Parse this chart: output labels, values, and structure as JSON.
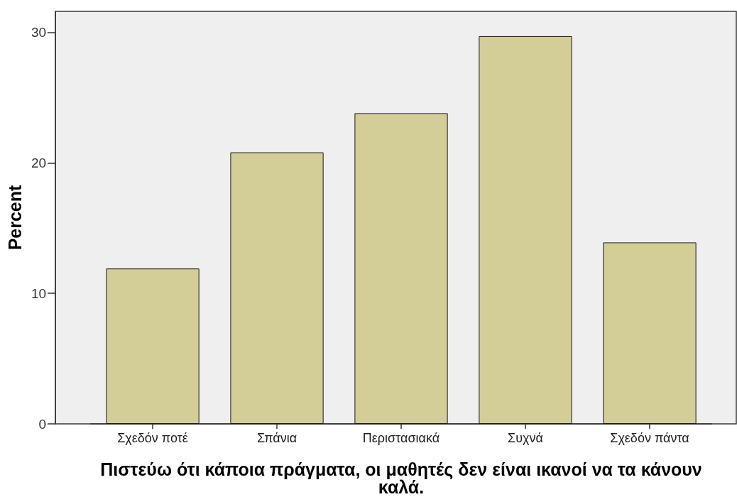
{
  "chart_data": {
    "type": "bar",
    "xlabel": "Πιστεύω ότι κάποια πράγματα, οι μαθητές δεν είναι ικανοί να τα κάνουν καλά.",
    "ylabel": "Percent",
    "categories": [
      "Σχεδόν ποτέ",
      "Σπάνια",
      "Περιστασιακά",
      "Συχνά",
      "Σχεδόν πάντα"
    ],
    "values": [
      11.9,
      20.8,
      23.8,
      29.7,
      13.9
    ],
    "color": "#d3cd97",
    "ylim": [
      0,
      31.6
    ],
    "yticks": [
      0,
      10,
      20,
      30
    ]
  }
}
